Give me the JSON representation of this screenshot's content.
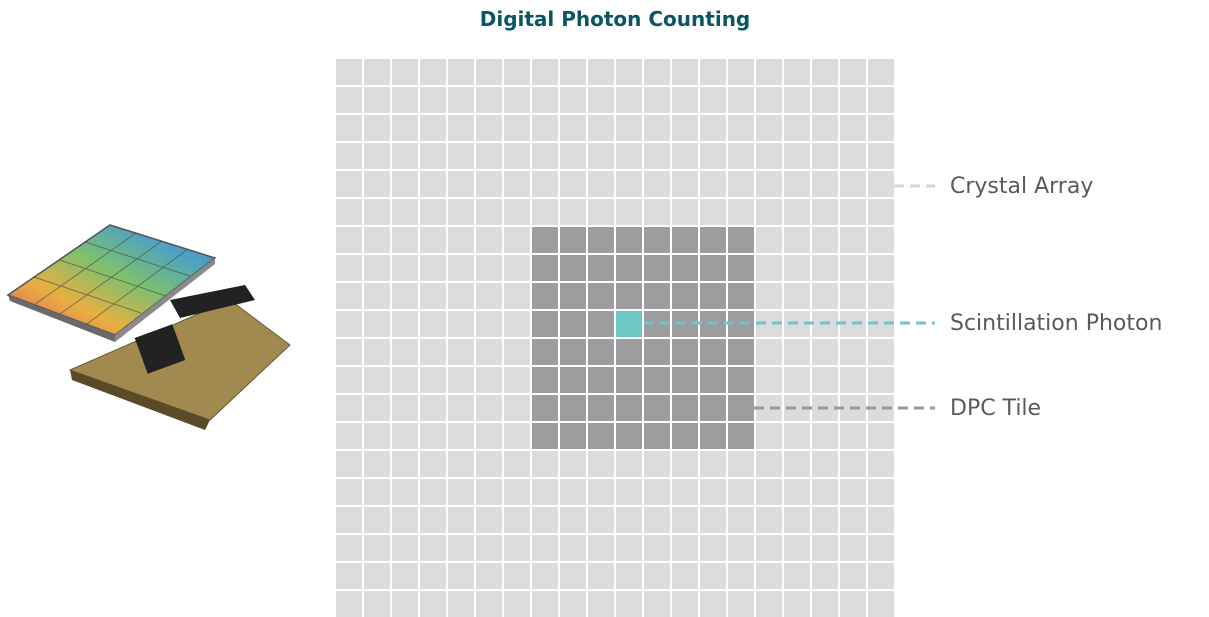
{
  "title": "Digital Photon Counting",
  "labels": [
    "Crystal Array",
    "Scintillation Photon",
    "DPC Tile"
  ]
}
